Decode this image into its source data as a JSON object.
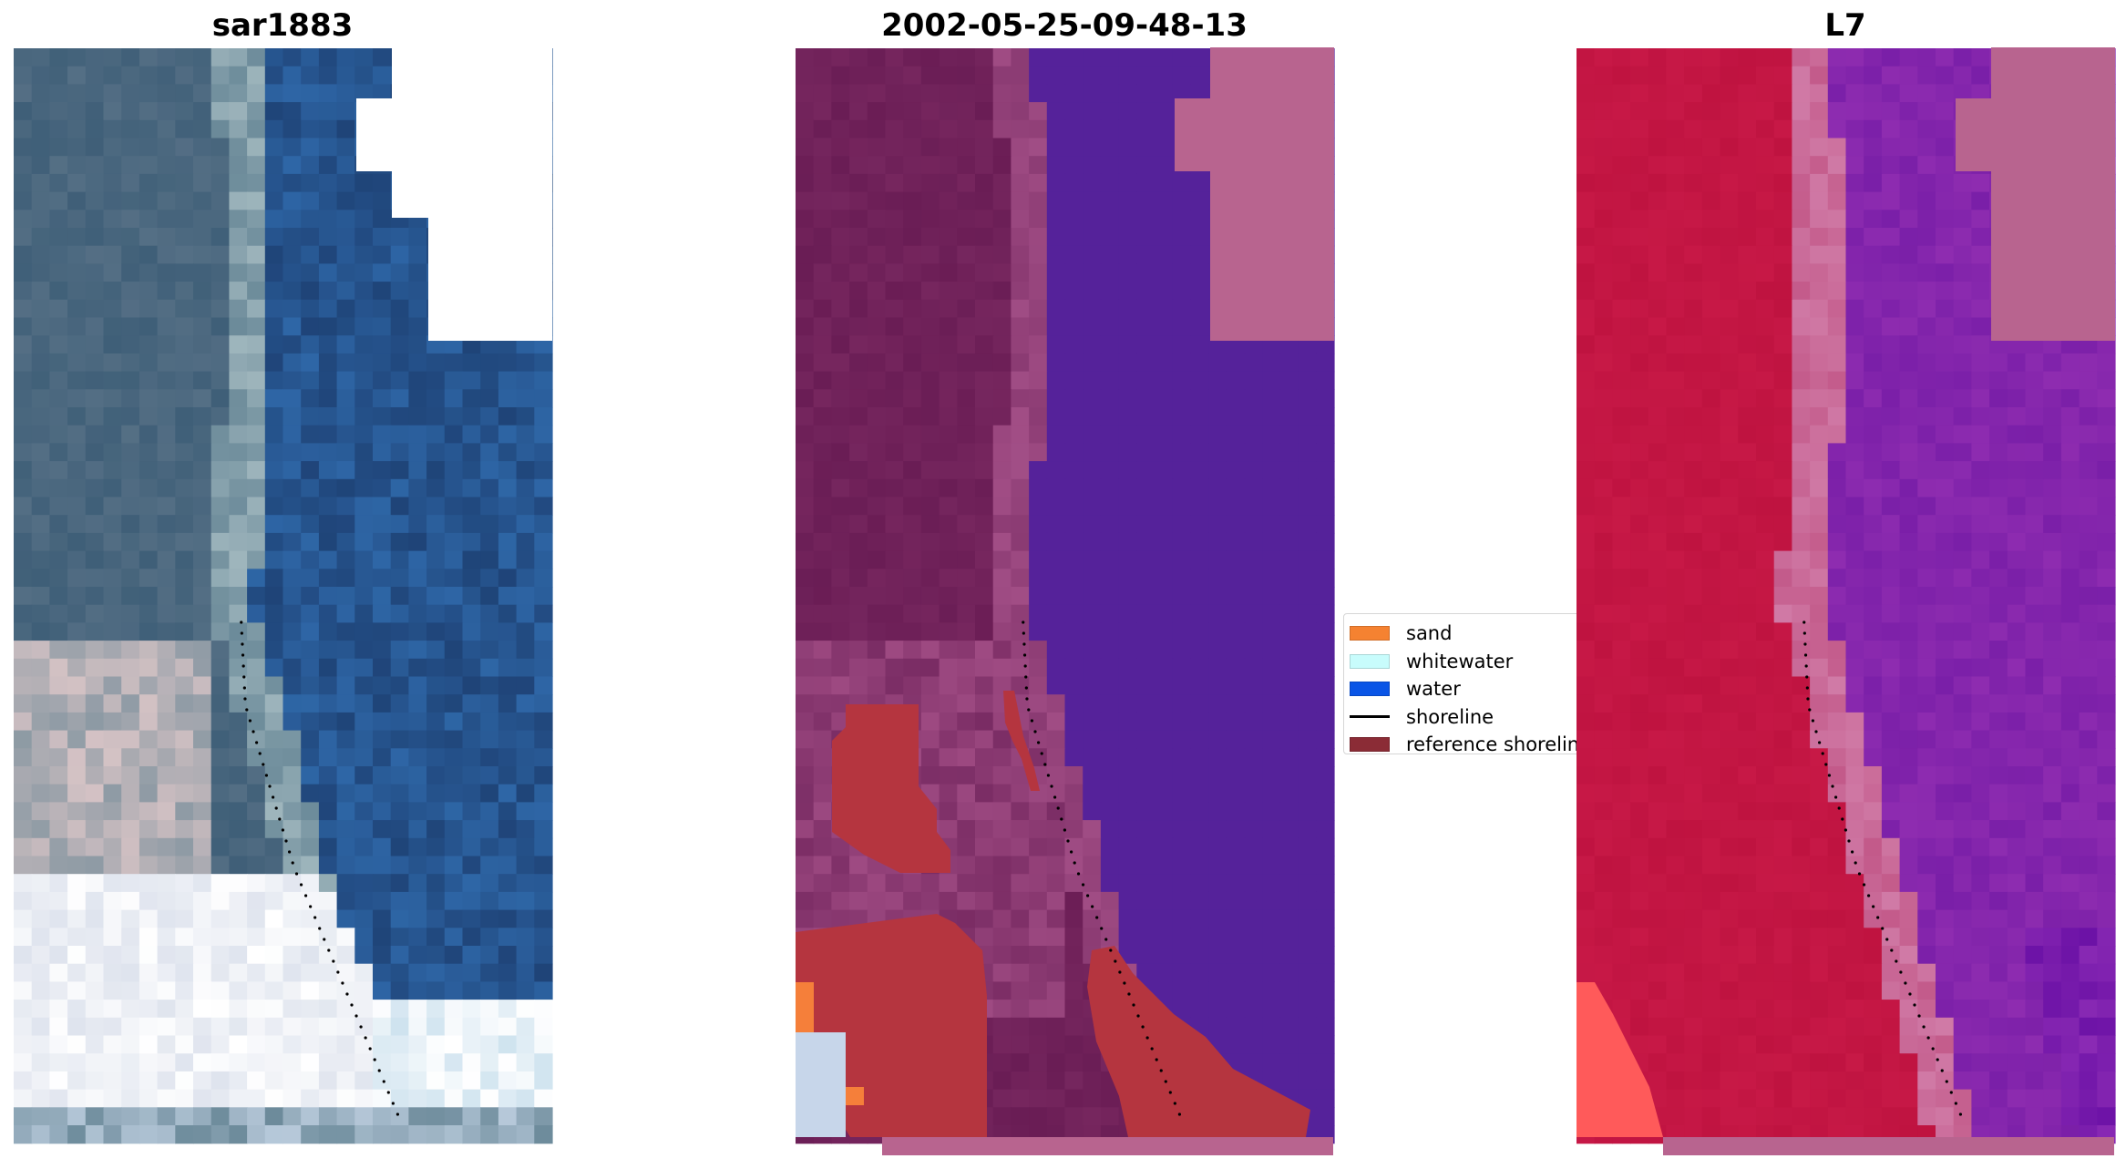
{
  "panels": [
    {
      "title": "sar1883",
      "base": "#2b4f79",
      "nodata_color": "#ffffff",
      "pixel_colors": [
        "#2f5a86",
        "#3a6b93",
        "#244a78",
        "#46708e",
        "#2d62a0",
        "#1f3f71",
        "#5f7f8f"
      ],
      "highlight_colors": [
        "#c9d6de",
        "#e9ecf2",
        "#d7b4b4",
        "#f2f2f4",
        "#b9d2ea",
        "#8fa6b2"
      ]
    },
    {
      "title": "2002-05-25-09-48-13",
      "base": "#6e1f59",
      "water_color": "#55229a",
      "nodata_color": "#b8648f",
      "reference_color": "#b5353f",
      "sand_color": "#f57f3a",
      "whitewater_color": "#c7d6ea"
    },
    {
      "title": "L7",
      "base": "#c2133f",
      "water_color": "#7b1fa2",
      "nodata_color": "#b8648f",
      "edge_color": "#c66fa0",
      "bright_color": "#ff5a5a"
    }
  ],
  "legend": {
    "items": [
      {
        "label": "sand",
        "color": "#f58231",
        "kind": "patch",
        "icon": "sand-swatch-icon"
      },
      {
        "label": "whitewater",
        "color": "#c8fcfc",
        "kind": "patch",
        "icon": "whitewater-swatch-icon"
      },
      {
        "label": "water",
        "color": "#0a55e6",
        "kind": "patch",
        "icon": "water-swatch-icon"
      },
      {
        "label": "shoreline",
        "color": "#000000",
        "kind": "line",
        "icon": "shoreline-line-icon"
      },
      {
        "label": "reference shoreline",
        "color": "#8b2c36",
        "kind": "patch",
        "icon": "reference-shoreline-swatch-icon"
      }
    ]
  },
  "shoreline": {
    "label": "shoreline",
    "color": "#000000",
    "style": "dotted"
  }
}
